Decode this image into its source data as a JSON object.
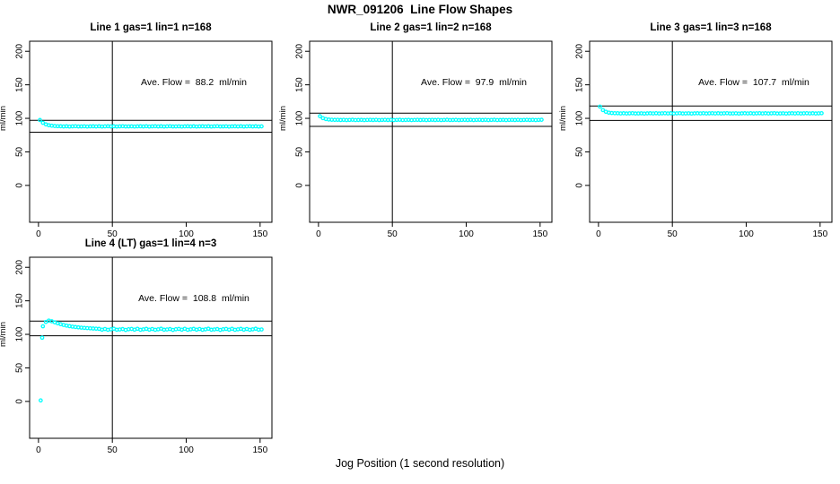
{
  "chart_data": {
    "type": "scatter",
    "title": "NWR_091206  Line Flow Shapes",
    "xlabel": "Jog Position (1 second resolution)",
    "ylabel": "ml/min",
    "x_ticks": [
      0,
      50,
      100,
      150
    ],
    "y_ticks": [
      0,
      50,
      100,
      150,
      200
    ],
    "xlim": [
      -6,
      158
    ],
    "ylim": [
      -55,
      215
    ],
    "grid": false,
    "legend": "none",
    "point_color": "#00FFFF",
    "line_color": "#000000",
    "panels": [
      {
        "title": "Line 1 gas=1 lin=1 n=168",
        "ave_flow_label": "Ave. Flow =  88.2  ml/min",
        "ave_flow": 88.2,
        "hline_upper": 97.0,
        "hline_lower": 79.4,
        "vline_x": 50,
        "x_start": 1,
        "x_step": 2,
        "y_values": [
          97.5,
          93.4,
          91,
          89.7,
          89,
          88.5,
          88.3,
          88.2,
          87.9,
          88.15,
          87.8,
          88.05,
          88.25,
          87.85,
          87.95,
          88.1,
          87.75,
          88,
          88.15,
          87.9,
          88.2,
          87.8,
          88.05,
          88.2,
          87.9,
          88.15,
          87.8,
          88.05,
          88.25,
          87.85,
          87.95,
          88.1,
          87.75,
          88,
          88.15,
          87.9,
          88.2,
          87.8,
          88.05,
          88.2,
          87.9,
          88.15,
          87.8,
          88.05,
          88.25,
          87.85,
          87.95,
          88.1,
          87.75,
          88,
          88.15,
          87.9,
          88.2,
          87.8,
          88.05,
          88.2,
          87.9,
          88.15,
          87.8,
          88.05,
          88.25,
          87.85,
          87.95,
          88.1,
          87.75,
          88,
          88.15,
          87.9,
          88.2,
          87.8,
          88.05,
          88.2,
          87.9,
          88.15,
          87.8,
          88.05
        ],
        "extra_points": []
      },
      {
        "title": "Line 2 gas=1 lin=2 n=168",
        "ave_flow_label": "Ave. Flow =  97.9  ml/min",
        "ave_flow": 97.9,
        "hline_upper": 107.7,
        "hline_lower": 88.1,
        "vline_x": 50,
        "x_start": 1,
        "x_step": 2,
        "y_values": [
          103.2,
          100.3,
          98.9,
          98.2,
          97.9,
          97.7,
          97.8,
          97.5,
          97.75,
          97.4,
          97.65,
          97.85,
          97.45,
          97.55,
          97.7,
          97.35,
          97.6,
          97.75,
          97.5,
          97.8,
          97.4,
          97.65,
          97.8,
          97.5,
          97.75,
          97.4,
          97.65,
          97.85,
          97.45,
          97.55,
          97.7,
          97.35,
          97.6,
          97.75,
          97.5,
          97.8,
          97.4,
          97.65,
          97.8,
          97.5,
          97.75,
          97.4,
          97.65,
          97.85,
          97.45,
          97.55,
          97.7,
          97.35,
          97.6,
          97.75,
          97.5,
          97.8,
          97.4,
          97.65,
          97.8,
          97.5,
          97.75,
          97.4,
          97.65,
          97.85,
          97.45,
          97.55,
          97.7,
          97.35,
          97.6,
          97.75,
          97.5,
          97.8,
          97.4,
          97.65,
          97.8,
          97.5,
          97.75,
          97.4,
          97.65,
          97.85
        ],
        "extra_points": []
      },
      {
        "title": "Line 3 gas=1 lin=3 n=168",
        "ave_flow_label": "Ave. Flow =  107.7  ml/min",
        "ave_flow": 107.7,
        "hline_upper": 118.5,
        "hline_lower": 96.9,
        "vline_x": 50,
        "x_start": 1,
        "x_step": 2,
        "y_values": [
          117.5,
          112.3,
          109.8,
          108.5,
          107.9,
          107.65,
          107.6,
          107.3,
          107.55,
          107.2,
          107.45,
          107.65,
          107.25,
          107.35,
          107.5,
          107.15,
          107.4,
          107.55,
          107.3,
          107.6,
          107.2,
          107.45,
          107.6,
          107.3,
          107.55,
          107.2,
          107.45,
          107.65,
          107.25,
          107.35,
          107.5,
          107.15,
          107.4,
          107.55,
          107.3,
          107.6,
          107.2,
          107.45,
          107.6,
          107.3,
          107.55,
          107.2,
          107.45,
          107.65,
          107.25,
          107.35,
          107.5,
          107.15,
          107.4,
          107.55,
          107.3,
          107.6,
          107.2,
          107.45,
          107.6,
          107.3,
          107.55,
          107.2,
          107.45,
          107.65,
          107.25,
          107.35,
          107.5,
          107.15,
          107.4,
          107.55,
          107.3,
          107.6,
          107.2,
          107.45,
          107.6,
          107.3,
          107.55,
          107.2,
          107.45,
          107.65
        ],
        "extra_points": []
      },
      {
        "title": "Line 4 (LT) gas=1 lin=4 n=3",
        "ave_flow_label": "Ave. Flow =  108.8  ml/min",
        "ave_flow": 108.8,
        "hline_upper": 119.7,
        "hline_lower": 97.9,
        "vline_x": 50,
        "x_start": 3,
        "x_step": 2,
        "y_values": [
          112,
          118.5,
          120.5,
          119.5,
          118,
          116.5,
          115.2,
          114,
          113,
          112.2,
          111.5,
          110.9,
          110.4,
          110,
          109.6,
          109.3,
          109,
          108.7,
          108.5,
          108.2,
          107,
          108,
          106.8,
          107.5,
          108.4,
          106.9,
          107.3,
          107.9,
          106.6,
          107.6,
          108.1,
          107,
          108.3,
          106.8,
          107.5,
          108.2,
          107,
          108,
          106.8,
          107.5,
          108.4,
          106.9,
          107.3,
          107.9,
          106.6,
          107.6,
          108.1,
          107,
          108.3,
          106.8,
          107.5,
          108.2,
          107,
          108,
          106.8,
          107.5,
          108.4,
          106.9,
          107.3,
          107.9,
          106.6,
          107.6,
          108.1,
          107,
          108.3,
          106.8,
          107.5,
          108.2,
          107,
          108,
          106.8,
          107.5,
          108.4,
          106.9,
          107.3
        ],
        "extra_points": [
          [
            1.5,
            1.5
          ],
          [
            2.5,
            95
          ]
        ]
      }
    ]
  }
}
